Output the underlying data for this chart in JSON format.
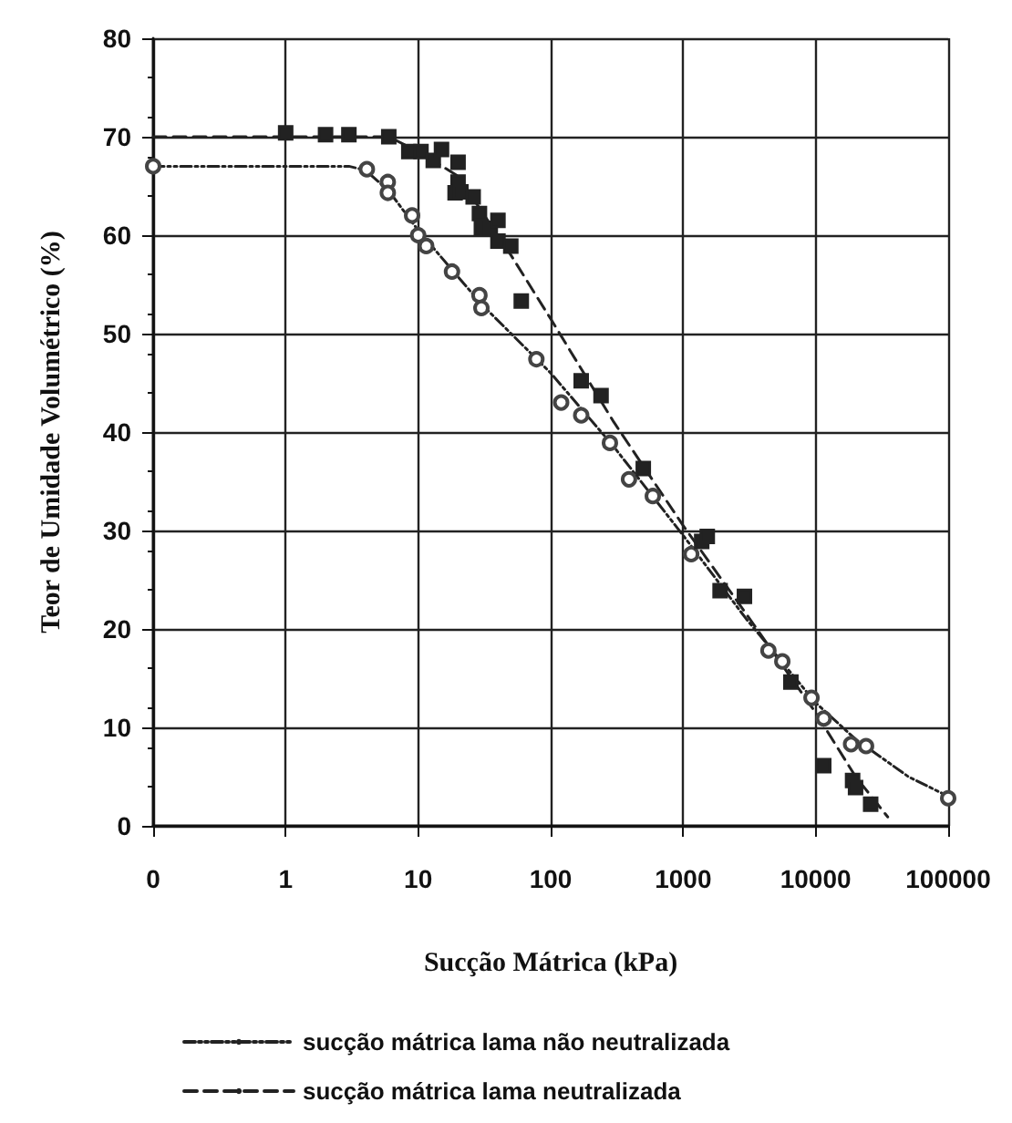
{
  "chart_data": {
    "type": "line",
    "xlabel": "Sucção Mátrica (kPa)",
    "ylabel": "Teor de Umidade Volumétrico (%)",
    "log": "x",
    "xlim": [
      0.1,
      100000
    ],
    "xticks": [
      {
        "value": 0.1,
        "label": "0"
      },
      1,
      10,
      100,
      1000,
      10000,
      100000
    ],
    "ylim": [
      0,
      80
    ],
    "yticks": [
      0,
      10,
      20,
      30,
      40,
      50,
      60,
      70,
      80
    ],
    "grid": true,
    "legend": "bottom",
    "series": [
      {
        "name": "sucção mátrica lama não neutralizada",
        "color": "#222222",
        "line_style": "dotted",
        "marker": "none",
        "x": [
          0.1,
          3,
          4,
          6,
          10,
          30,
          100,
          300,
          1000,
          3000,
          10000,
          20000,
          50000,
          100000
        ],
        "values": [
          67,
          67,
          66.6,
          64.5,
          60.5,
          53,
          46,
          38.5,
          29.5,
          21,
          12.5,
          8.8,
          5,
          3
        ]
      },
      {
        "name": "sucção mátrica lama neutralizada",
        "color": "#222222",
        "line_style": "dashed",
        "marker": "none",
        "x": [
          0.1,
          6,
          10,
          20,
          50,
          100,
          300,
          1000,
          3000,
          10000,
          20000,
          35000
        ],
        "values": [
          70,
          70,
          68.5,
          66,
          58,
          51.5,
          41,
          30.5,
          21.5,
          11.5,
          5,
          0.9
        ]
      },
      {
        "type": "scatter",
        "color": "#444444",
        "marker": "circle",
        "x": [
          0.1,
          4.1,
          5.9,
          5.9,
          9,
          10,
          11.5,
          18,
          29,
          30,
          78,
          120,
          170,
          280,
          390,
          590,
          1150,
          4400,
          5600,
          9300,
          11500,
          18500,
          24000,
          100000
        ],
        "values": [
          67,
          66.7,
          65.4,
          64.3,
          62,
          60,
          58.9,
          56.3,
          53.9,
          52.6,
          47.4,
          43,
          41.7,
          38.9,
          35.2,
          33.5,
          27.6,
          17.8,
          16.7,
          13,
          10.9,
          8.3,
          8.1,
          2.8
        ]
      },
      {
        "type": "scatter",
        "color": "#222222",
        "marker": "square",
        "x": [
          1,
          2,
          3,
          6,
          8.5,
          10.5,
          13,
          15,
          20,
          20,
          19,
          21,
          26,
          29,
          30,
          35,
          40,
          40,
          50,
          60,
          170,
          240,
          500,
          1380,
          1520,
          1900,
          2900,
          6500,
          11500,
          19000,
          20000,
          26000
        ],
        "values": [
          70.4,
          70.2,
          70.2,
          70,
          68.5,
          68.5,
          67.6,
          68.7,
          67.4,
          65.4,
          64.3,
          64.4,
          63.9,
          62.2,
          60.7,
          60.7,
          61.5,
          59.4,
          58.9,
          53.3,
          45.2,
          43.7,
          36.3,
          28.9,
          29.4,
          23.9,
          23.3,
          14.6,
          6.1,
          4.6,
          3.9,
          2.2
        ]
      }
    ]
  }
}
